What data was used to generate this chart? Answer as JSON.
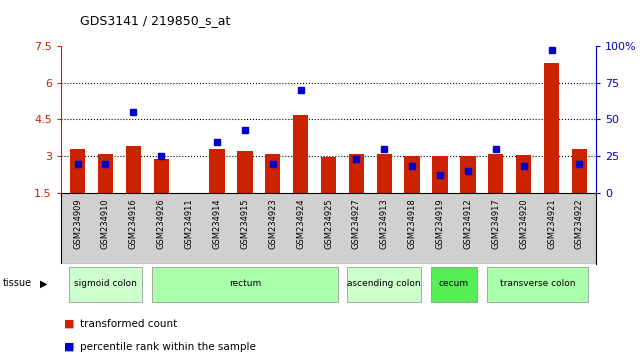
{
  "title": "GDS3141 / 219850_s_at",
  "samples": [
    "GSM234909",
    "GSM234910",
    "GSM234916",
    "GSM234926",
    "GSM234911",
    "GSM234914",
    "GSM234915",
    "GSM234923",
    "GSM234924",
    "GSM234925",
    "GSM234927",
    "GSM234913",
    "GSM234918",
    "GSM234919",
    "GSM234912",
    "GSM234917",
    "GSM234920",
    "GSM234921",
    "GSM234922"
  ],
  "red_values": [
    3.3,
    3.1,
    3.4,
    2.9,
    1.5,
    3.3,
    3.2,
    3.1,
    4.7,
    2.95,
    3.1,
    3.1,
    3.0,
    3.0,
    3.0,
    3.1,
    3.05,
    6.8,
    3.3
  ],
  "blue_percentiles": [
    20,
    20,
    55,
    25,
    null,
    35,
    43,
    20,
    70,
    null,
    23,
    30,
    18,
    12,
    15,
    30,
    18,
    97,
    20
  ],
  "tissue_groups": [
    {
      "label": "sigmoid colon",
      "start": 0,
      "end": 3,
      "color": "#ccffcc"
    },
    {
      "label": "rectum",
      "start": 3,
      "end": 10,
      "color": "#aaffaa"
    },
    {
      "label": "ascending colon",
      "start": 10,
      "end": 13,
      "color": "#ccffcc"
    },
    {
      "label": "cecum",
      "start": 13,
      "end": 15,
      "color": "#55ee55"
    },
    {
      "label": "transverse colon",
      "start": 15,
      "end": 19,
      "color": "#aaffaa"
    }
  ],
  "ylim_left": [
    1.5,
    7.5
  ],
  "ylim_right": [
    0,
    100
  ],
  "yticks_left": [
    1.5,
    3.0,
    4.5,
    6.0,
    7.5
  ],
  "yticks_right": [
    0,
    25,
    50,
    75,
    100
  ],
  "ytick_labels_left": [
    "1.5",
    "3",
    "4.5",
    "6",
    "7.5"
  ],
  "ytick_labels_right": [
    "0",
    "25",
    "50",
    "75",
    "100%"
  ],
  "hlines": [
    3.0,
    4.5,
    6.0
  ],
  "bar_color_red": "#cc2200",
  "bar_color_blue": "#0000cc",
  "bar_width": 0.55,
  "bg_color": "#ffffff",
  "tick_area_bg": "#d0d0d0"
}
